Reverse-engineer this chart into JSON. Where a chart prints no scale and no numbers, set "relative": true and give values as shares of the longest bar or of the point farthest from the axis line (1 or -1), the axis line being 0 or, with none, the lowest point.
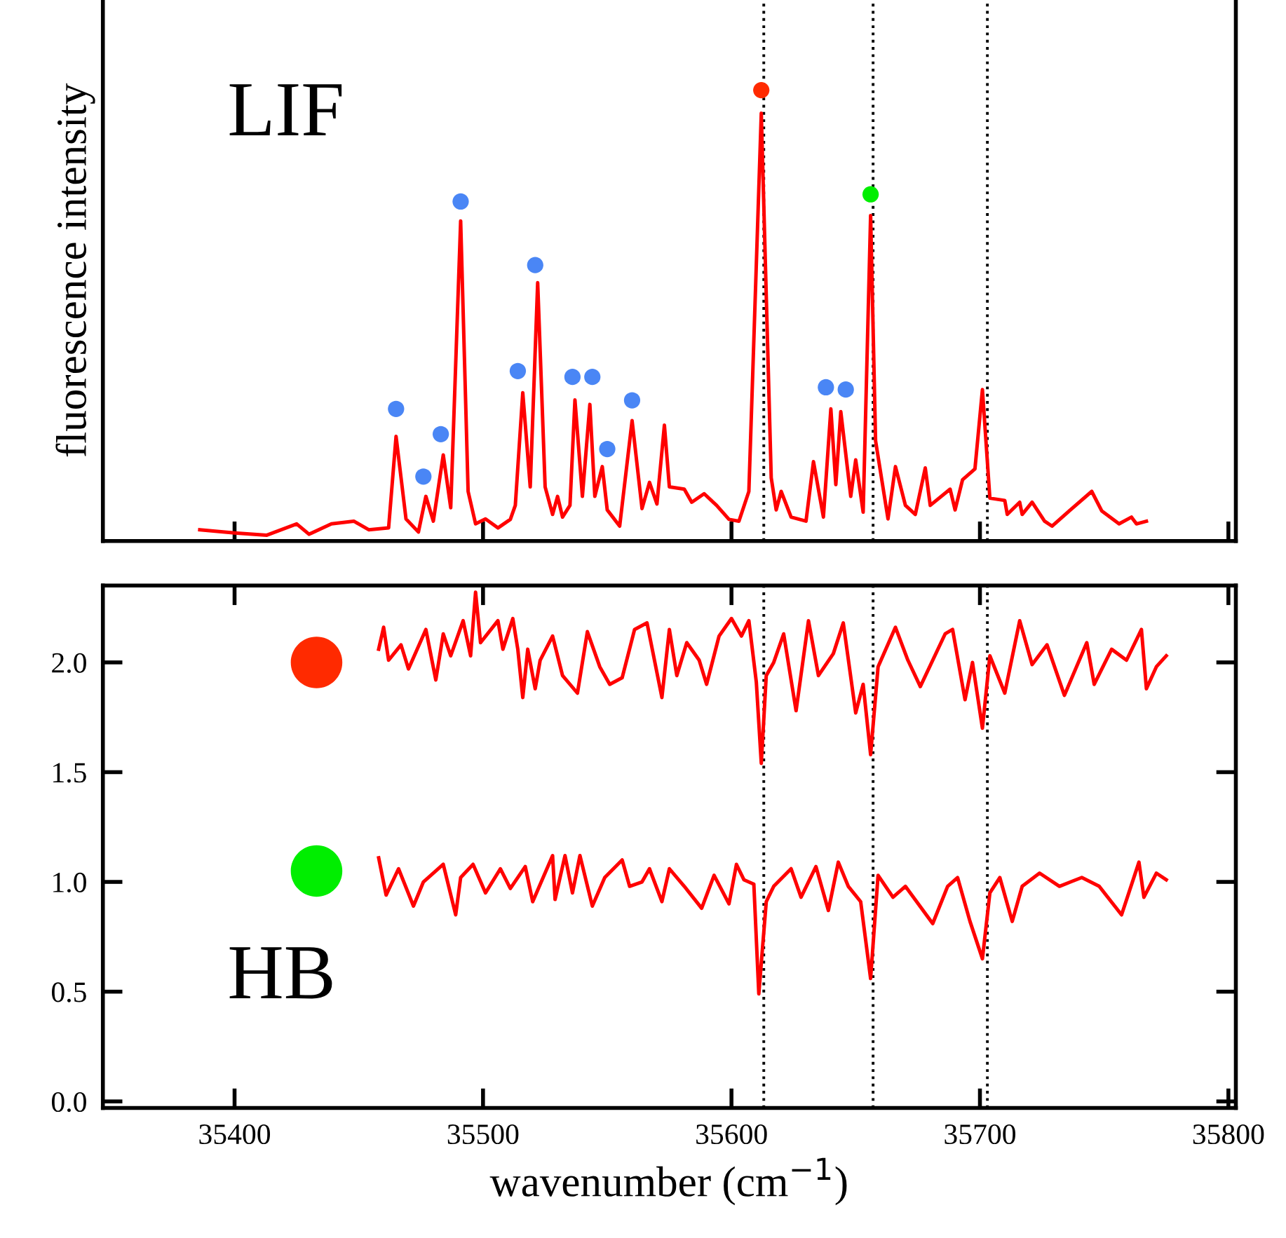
{
  "chart_data": [
    {
      "type": "line",
      "relative": true,
      "ylabel": "fluorescence intensity",
      "annotations": [
        "LIF"
      ],
      "tick_labels": false,
      "xlim": [
        35347,
        35803
      ],
      "xticks": [
        35400,
        35500,
        35600,
        35700,
        35800
      ],
      "ref_lines": [
        {
          "axis": "x",
          "value": 35613,
          "color": "#000000",
          "line_style": "dotted"
        },
        {
          "axis": "x",
          "value": 35657,
          "color": "#000000",
          "line_style": "dotted"
        },
        {
          "axis": "x",
          "value": 35703,
          "color": "#000000",
          "line_style": "dotted"
        }
      ],
      "series": [
        {
          "color": "#ff0000",
          "x": [
            35386,
            35400,
            35413,
            35425,
            35430,
            35439,
            35448,
            35454,
            35462,
            35465,
            35469,
            35474,
            35477,
            35480,
            35484,
            35487,
            35491,
            35494,
            35497,
            35501,
            35506,
            35511,
            35513,
            35516,
            35519,
            35522,
            35525,
            35528,
            35530,
            35532,
            35535,
            35537,
            35540,
            35543,
            35545,
            35548,
            35550,
            35555,
            35560,
            35564,
            35567,
            35570,
            35573,
            35575,
            35581,
            35584,
            35589,
            35594,
            35599,
            35603,
            35607,
            35612,
            35616,
            35618,
            35620,
            35624,
            35630,
            35633,
            35637,
            35640,
            35642,
            35644,
            35648,
            35650,
            35653,
            35656,
            35658,
            35663,
            35666,
            35670,
            35674,
            35678,
            35680,
            35688,
            35690,
            35693,
            35698,
            35701,
            35704,
            35710,
            35711,
            35716,
            35717,
            35721,
            35726,
            35729,
            35736,
            35745,
            35749,
            35756,
            35761,
            35763,
            35767
          ],
          "values": [
            0.025,
            0.018,
            0.013,
            0.038,
            0.015,
            0.038,
            0.044,
            0.025,
            0.029,
            0.232,
            0.049,
            0.02,
            0.099,
            0.044,
            0.191,
            0.074,
            0.71,
            0.11,
            0.038,
            0.049,
            0.029,
            0.048,
            0.079,
            0.329,
            0.12,
            0.573,
            0.12,
            0.059,
            0.099,
            0.053,
            0.079,
            0.313,
            0.099,
            0.303,
            0.099,
            0.165,
            0.069,
            0.033,
            0.267,
            0.072,
            0.13,
            0.082,
            0.257,
            0.12,
            0.115,
            0.086,
            0.105,
            0.079,
            0.048,
            0.044,
            0.11,
            0.949,
            0.14,
            0.069,
            0.11,
            0.053,
            0.044,
            0.176,
            0.053,
            0.293,
            0.125,
            0.287,
            0.099,
            0.18,
            0.064,
            0.722,
            0.222,
            0.049,
            0.165,
            0.079,
            0.059,
            0.162,
            0.079,
            0.115,
            0.069,
            0.136,
            0.16,
            0.336,
            0.095,
            0.09,
            0.059,
            0.086,
            0.059,
            0.086,
            0.044,
            0.033,
            0.067,
            0.11,
            0.067,
            0.038,
            0.053,
            0.038,
            0.044
          ]
        },
        {
          "type": "scatter",
          "marker": "circle",
          "x": [
            35465,
            35476,
            35483,
            35491,
            35514,
            35521,
            35536,
            35544,
            35550,
            35560,
            35612,
            35638,
            35646,
            35656
          ],
          "values": [
            0.293,
            0.143,
            0.237,
            0.753,
            0.377,
            0.612,
            0.364,
            0.364,
            0.204,
            0.312,
            1.0,
            0.341,
            0.336,
            0.769
          ],
          "colors": [
            "#4a86f5",
            "#4a86f5",
            "#4a86f5",
            "#4a86f5",
            "#4a86f5",
            "#4a86f5",
            "#4a86f5",
            "#4a86f5",
            "#4a86f5",
            "#4a86f5",
            "#ff2a00",
            "#4a86f5",
            "#4a86f5",
            "#00ee00"
          ]
        }
      ]
    },
    {
      "type": "line",
      "xlabel": "wavenumber (cm$^{−1}$)",
      "annotations": [
        "HB"
      ],
      "xlim": [
        35347,
        35803
      ],
      "xticks": [
        35400,
        35500,
        35600,
        35700,
        35800
      ],
      "ylim": [
        -0.03,
        2.35
      ],
      "yticks": [
        {
          "value": 0,
          "label": "0.0"
        },
        {
          "value": 0.5,
          "label": "0.5"
        },
        {
          "value": 1,
          "label": "1.0"
        },
        {
          "value": 1.5,
          "label": "1.5"
        },
        {
          "value": 2,
          "label": "2.0"
        }
      ],
      "ref_lines": [
        {
          "axis": "x",
          "value": 35613,
          "color": "#000000",
          "line_style": "dotted"
        },
        {
          "axis": "x",
          "value": 35657,
          "color": "#000000",
          "line_style": "dotted"
        },
        {
          "axis": "x",
          "value": 35703,
          "color": "#000000",
          "line_style": "dotted"
        }
      ],
      "series": [
        {
          "color": "#ff0000",
          "x": [
            35458,
            35460,
            35462,
            35467,
            35470,
            35477,
            35481,
            35484,
            35487,
            35492,
            35495,
            35497,
            35499,
            35506,
            35508,
            35512,
            35514,
            35516,
            35518,
            35521,
            35523,
            35528,
            35532,
            35538,
            35542,
            35547,
            35551,
            35556,
            35561,
            35566,
            35572,
            35575,
            35578,
            35582,
            35587,
            35590,
            35595,
            35600,
            35604,
            35607,
            35610,
            35612,
            35614,
            35617,
            35621,
            35626,
            35631,
            35635,
            35641,
            35645,
            35650,
            35653,
            35656,
            35659,
            35666,
            35671,
            35676,
            35686,
            35689,
            35694,
            35697,
            35701,
            35704,
            35710,
            35716,
            35721,
            35727,
            35734,
            35743,
            35746,
            35753,
            35759,
            35765,
            35767,
            35771,
            35775
          ],
          "values": [
            2.06,
            2.16,
            2.01,
            2.08,
            1.97,
            2.15,
            1.92,
            2.13,
            2.03,
            2.19,
            2.03,
            2.32,
            2.09,
            2.19,
            2.06,
            2.2,
            2.06,
            1.84,
            2.06,
            1.88,
            2.01,
            2.12,
            1.94,
            1.86,
            2.14,
            1.98,
            1.9,
            1.93,
            2.15,
            2.18,
            1.84,
            2.15,
            1.94,
            2.09,
            2.01,
            1.9,
            2.12,
            2.2,
            2.12,
            2.19,
            1.91,
            1.54,
            1.94,
            2.0,
            2.13,
            1.78,
            2.19,
            1.94,
            2.04,
            2.18,
            1.77,
            1.9,
            1.58,
            1.98,
            2.16,
            2.01,
            1.89,
            2.13,
            2.15,
            1.83,
            2.0,
            1.7,
            2.03,
            1.86,
            2.19,
            1.99,
            2.08,
            1.85,
            2.09,
            1.9,
            2.06,
            2.01,
            2.15,
            1.88,
            1.98,
            2.03
          ]
        },
        {
          "color": "#ff0000",
          "x": [
            35458,
            35461,
            35466,
            35472,
            35476,
            35484,
            35489,
            35491,
            35496,
            35501,
            35507,
            35511,
            35517,
            35520,
            35528,
            35529,
            35533,
            35536,
            35539,
            35544,
            35549,
            35556,
            35559,
            35564,
            35567,
            35572,
            35575,
            35581,
            35588,
            35593,
            35599,
            35602,
            35605,
            35609,
            35611,
            35614,
            35617,
            35624,
            35628,
            35634,
            35639,
            35643,
            35647,
            35652,
            35656,
            35659,
            35665,
            35670,
            35681,
            35687,
            35691,
            35696,
            35701,
            35704,
            35708,
            35713,
            35717,
            35724,
            35732,
            35741,
            35748,
            35757,
            35764,
            35766,
            35771,
            35775
          ],
          "values": [
            1.11,
            0.94,
            1.06,
            0.89,
            1.0,
            1.08,
            0.85,
            1.02,
            1.08,
            0.95,
            1.06,
            0.97,
            1.07,
            0.91,
            1.12,
            0.92,
            1.12,
            0.95,
            1.12,
            0.89,
            1.02,
            1.1,
            0.98,
            1.0,
            1.06,
            0.91,
            1.06,
            0.98,
            0.88,
            1.03,
            0.9,
            1.08,
            1.01,
            0.99,
            0.49,
            0.91,
            0.98,
            1.06,
            0.93,
            1.07,
            0.87,
            1.09,
            0.98,
            0.91,
            0.56,
            1.03,
            0.93,
            0.98,
            0.81,
            0.98,
            1.02,
            0.82,
            0.65,
            0.95,
            1.02,
            0.82,
            0.98,
            1.04,
            0.98,
            1.02,
            0.98,
            0.85,
            1.09,
            0.93,
            1.04,
            1.01
          ]
        },
        {
          "type": "scatter",
          "marker": "circle",
          "x": [
            35433,
            35433
          ],
          "values": [
            2.0,
            1.05
          ],
          "colors": [
            "#ff2a00",
            "#00ee00"
          ]
        }
      ]
    }
  ]
}
